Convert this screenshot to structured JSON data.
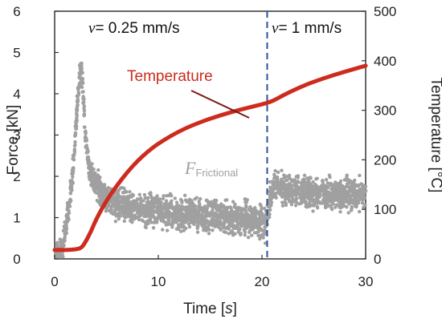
{
  "chart_data": {
    "type": "scatter",
    "x_axis": {
      "label_text": "Time [",
      "label_unit": "s",
      "label_close": "]",
      "range": [
        0,
        30
      ],
      "ticks": [
        "0",
        "10",
        "20",
        "30"
      ]
    },
    "y_axis_left": {
      "label": "Force [kN]",
      "range": [
        0,
        6
      ],
      "ticks": [
        "0",
        "1",
        "2",
        "3",
        "4",
        "5",
        "6"
      ]
    },
    "y_axis_right": {
      "label": "Temperature [°C]",
      "range": [
        0,
        500
      ],
      "ticks": [
        "0",
        "100",
        "200",
        "300",
        "400",
        "500"
      ]
    },
    "regions": {
      "left": {
        "symbol": "v",
        "text": "= 0.25 mm/s"
      },
      "right": {
        "symbol": "v",
        "text": "= 1 mm/s"
      },
      "divider_x": 20.5,
      "divider_color": "#2f4f9a"
    },
    "series": [
      {
        "name": "Temperature",
        "axis": "right",
        "kind": "line",
        "color": "#cc2b1d",
        "x": [
          0,
          1,
          2,
          2.6,
          3,
          3.5,
          4,
          5,
          6,
          7,
          8,
          9,
          10,
          12,
          14,
          16,
          18,
          20,
          21,
          22,
          24,
          26,
          28,
          30
        ],
        "y": [
          18,
          18,
          19,
          22,
          35,
          55,
          80,
          118,
          148,
          175,
          198,
          217,
          233,
          258,
          276,
          290,
          302,
          312,
          318,
          330,
          350,
          365,
          378,
          390
        ]
      },
      {
        "name_main": "F",
        "name_sub": "Frictional",
        "axis": "left",
        "kind": "scatter",
        "color": "#a0a0a0",
        "x": [
          0.2,
          0.4,
          0.6,
          0.8,
          1.0,
          1.2,
          1.4,
          1.6,
          1.8,
          2.0,
          2.2,
          2.4,
          2.6,
          2.8,
          3.0,
          3.2,
          3.5,
          3.8,
          4.2,
          4.6,
          5.0,
          5.5,
          6,
          7,
          8,
          9,
          10,
          11,
          12,
          13,
          14,
          15,
          16,
          17,
          18,
          19,
          20,
          20.4,
          20.8,
          21.2,
          22,
          23,
          24,
          25,
          26,
          27,
          28,
          29,
          30
        ],
        "y": [
          0.1,
          0.15,
          0.2,
          0.3,
          0.6,
          1.0,
          1.3,
          1.7,
          2.2,
          3.0,
          3.8,
          4.5,
          4.6,
          3.8,
          2.9,
          2.4,
          2.1,
          1.9,
          1.7,
          1.6,
          1.5,
          1.4,
          1.35,
          1.25,
          1.2,
          1.15,
          1.15,
          1.12,
          1.1,
          1.1,
          1.05,
          1.05,
          1.0,
          1.0,
          0.98,
          0.95,
          0.9,
          0.8,
          1.5,
          1.8,
          1.7,
          1.65,
          1.6,
          1.6,
          1.58,
          1.55,
          1.6,
          1.6,
          1.65
        ]
      }
    ]
  }
}
